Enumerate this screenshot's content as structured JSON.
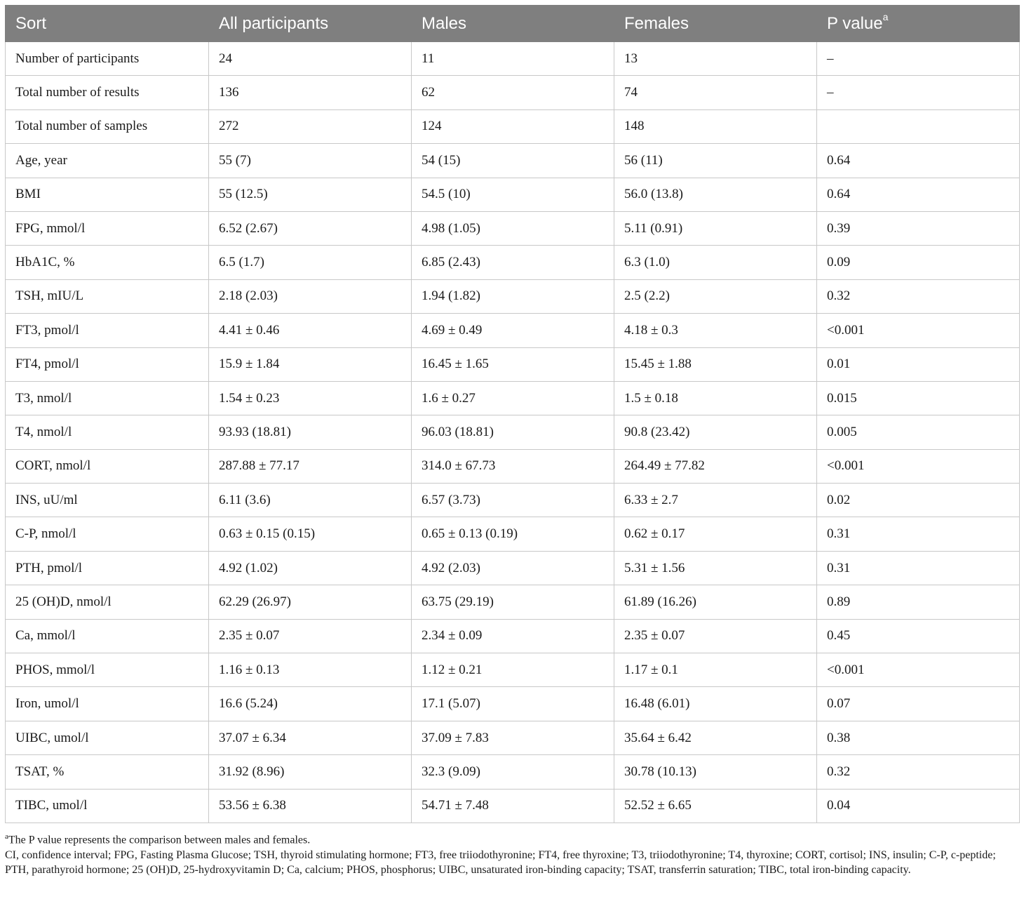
{
  "table": {
    "headers": [
      "Sort",
      "All participants",
      "Males",
      "Females",
      "P value"
    ],
    "header_sup": "a",
    "rows": [
      [
        "Number of participants",
        "24",
        "11",
        "13",
        "–"
      ],
      [
        "Total number of results",
        "136",
        "62",
        "74",
        "–"
      ],
      [
        "Total number of samples",
        "272",
        "124",
        "148",
        ""
      ],
      [
        "Age, year",
        "55 (7)",
        "54 (15)",
        "56 (11)",
        "0.64"
      ],
      [
        "BMI",
        "55 (12.5)",
        "54.5 (10)",
        "56.0 (13.8)",
        "0.64"
      ],
      [
        "FPG, mmol/l",
        "6.52 (2.67)",
        "4.98 (1.05)",
        "5.11 (0.91)",
        "0.39"
      ],
      [
        "HbA1C, %",
        "6.5 (1.7)",
        "6.85 (2.43)",
        "6.3 (1.0)",
        "0.09"
      ],
      [
        "TSH, mIU/L",
        "2.18 (2.03)",
        "1.94 (1.82)",
        "2.5 (2.2)",
        "0.32"
      ],
      [
        "FT3, pmol/l",
        "4.41 ± 0.46",
        "4.69 ± 0.49",
        "4.18 ± 0.3",
        "<0.001"
      ],
      [
        "FT4, pmol/l",
        "15.9 ± 1.84",
        "16.45 ± 1.65",
        "15.45 ± 1.88",
        "0.01"
      ],
      [
        "T3, nmol/l",
        "1.54 ± 0.23",
        "1.6 ± 0.27",
        "1.5 ± 0.18",
        "0.015"
      ],
      [
        "T4, nmol/l",
        "93.93 (18.81)",
        "96.03 (18.81)",
        "90.8 (23.42)",
        "0.005"
      ],
      [
        "CORT, nmol/l",
        "287.88 ± 77.17",
        "314.0 ± 67.73",
        "264.49 ± 77.82",
        "<0.001"
      ],
      [
        "INS, uU/ml",
        "6.11 (3.6)",
        "6.57 (3.73)",
        "6.33 ± 2.7",
        "0.02"
      ],
      [
        "C-P, nmol/l",
        "0.63 ± 0.15 (0.15)",
        "0.65 ± 0.13 (0.19)",
        "0.62 ± 0.17",
        "0.31"
      ],
      [
        "PTH, pmol/l",
        "4.92 (1.02)",
        "4.92 (2.03)",
        "5.31 ± 1.56",
        "0.31"
      ],
      [
        "25 (OH)D, nmol/l",
        "62.29 (26.97)",
        "63.75 (29.19)",
        "61.89 (16.26)",
        "0.89"
      ],
      [
        "Ca, mmol/l",
        "2.35 ± 0.07",
        "2.34 ± 0.09",
        "2.35 ± 0.07",
        "0.45"
      ],
      [
        "PHOS, mmol/l",
        "1.16 ± 0.13",
        "1.12 ± 0.21",
        "1.17 ± 0.1",
        "<0.001"
      ],
      [
        "Iron, umol/l",
        "16.6 (5.24)",
        "17.1 (5.07)",
        "16.48 (6.01)",
        "0.07"
      ],
      [
        "UIBC, umol/l",
        "37.07 ± 6.34",
        "37.09 ± 7.83",
        "35.64 ± 6.42",
        "0.38"
      ],
      [
        "TSAT, %",
        "31.92 (8.96)",
        "32.3 (9.09)",
        "30.78 (10.13)",
        "0.32"
      ],
      [
        "TIBC, umol/l",
        "53.56 ± 6.38",
        "54.71 ± 7.48",
        "52.52 ± 6.65",
        "0.04"
      ]
    ]
  },
  "footnotes": {
    "marker": "a",
    "note_a": "The P value represents the comparison between males and females.",
    "abbreviations": "CI, confidence interval; FPG, Fasting Plasma Glucose; TSH, thyroid stimulating hormone; FT3, free triiodothyronine; FT4, free thyroxine; T3, triiodothyronine; T4, thyroxine; CORT, cortisol; INS, insulin; C-P, c-peptide; PTH, parathyroid hormone; 25 (OH)D, 25-hydroxyvitamin D; Ca, calcium; PHOS, phosphorus; UIBC, unsaturated iron-binding capacity; TSAT, transferrin saturation; TIBC, total iron-binding capacity."
  }
}
